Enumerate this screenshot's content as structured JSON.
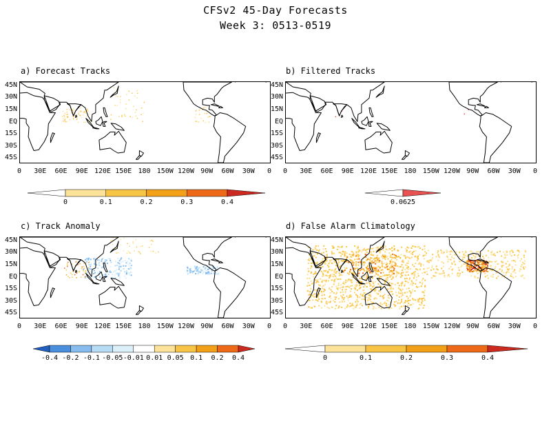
{
  "header": {
    "title": "CFSv2 45-Day Forecasts",
    "subtitle": "Week 3: 0513-0519"
  },
  "lat_labels": [
    "45N",
    "30N",
    "15N",
    "EQ",
    "15S",
    "30S",
    "45S"
  ],
  "lon_labels": [
    "0",
    "30E",
    "60E",
    "90E",
    "120E",
    "150E",
    "180",
    "150W",
    "120W",
    "90W",
    "60W",
    "30W",
    "0"
  ],
  "panels": {
    "a": {
      "title": "a) Forecast Tracks",
      "legend": {
        "labels": [
          "0",
          "0.1",
          "0.2",
          "0.3",
          "0.4"
        ],
        "colors": [
          "#ffffff",
          "#fde39a",
          "#f8c445",
          "#f3a019",
          "#ee6a18",
          "#cc2a1e"
        ]
      }
    },
    "b": {
      "title": "b) Filtered Tracks",
      "legend": {
        "labels": [
          "0.0625"
        ],
        "colors": [
          "#ffffff",
          "#e85252"
        ]
      }
    },
    "c": {
      "title": "c) Track Anomaly",
      "legend": {
        "labels": [
          "-0.4",
          "-0.2",
          "-0.1",
          "-0.05",
          "-0.01",
          "0.01",
          "0.05",
          "0.1",
          "0.2",
          "0.4"
        ],
        "colors": [
          "#1f5fbf",
          "#4a8fde",
          "#86bcee",
          "#b7dcf6",
          "#dcf0fa",
          "#ffffff",
          "#fde39a",
          "#f8c445",
          "#f3a019",
          "#ee6a18",
          "#cc2a1e"
        ]
      }
    },
    "d": {
      "title": "d) False Alarm Climatology",
      "legend": {
        "labels": [
          "0",
          "0.1",
          "0.2",
          "0.3",
          "0.4"
        ],
        "colors": [
          "#ffffff",
          "#fde39a",
          "#f8c445",
          "#f3a019",
          "#ee6a18",
          "#cc2a1e"
        ]
      }
    }
  }
}
